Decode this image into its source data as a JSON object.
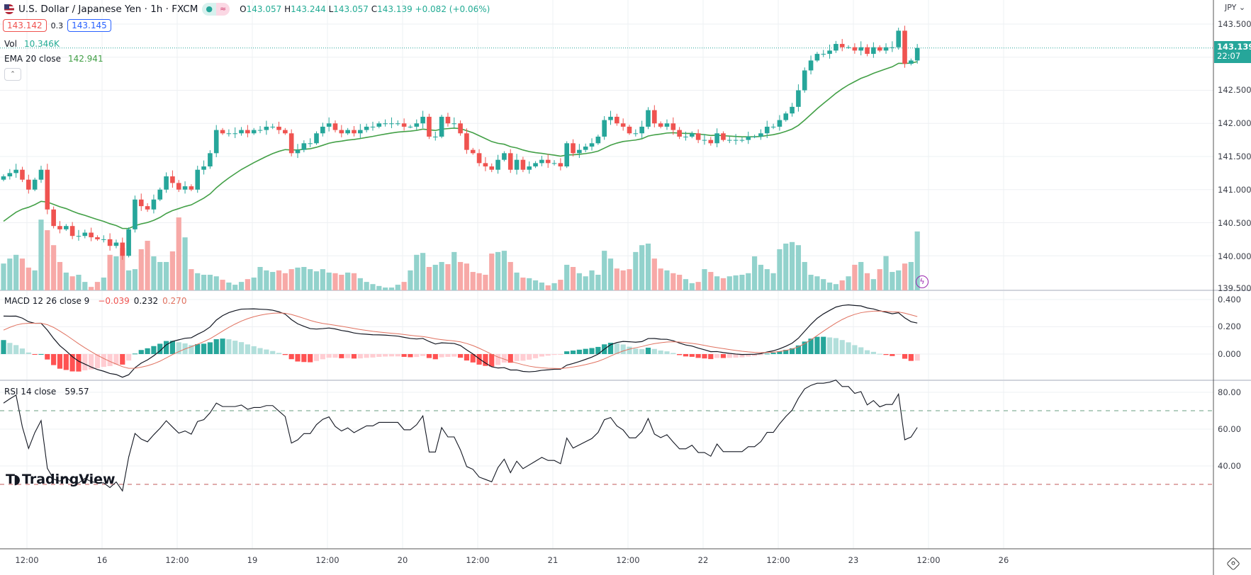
{
  "header": {
    "title": "U.S. Dollar / Japanese Yen · 1h · FXCM",
    "open_label": "O",
    "open": "143.057",
    "high_label": "H",
    "high": "143.244",
    "low_label": "L",
    "low": "143.057",
    "close_label": "C",
    "close": "143.139",
    "change": "+0.082 (+0.06%)",
    "status_dot": "●",
    "status_wave": "≈"
  },
  "quote": {
    "bid": "143.142",
    "spread": "0.3",
    "ask": "143.145"
  },
  "vol_legend": {
    "label": "Vol",
    "value": "10.346K"
  },
  "ema_legend": {
    "label": "EMA 20 close",
    "value": "142.941"
  },
  "macd_legend": {
    "label": "MACD 12 26 close 9",
    "hist": "−0.039",
    "macd": "0.232",
    "signal": "0.270"
  },
  "rsi_legend": {
    "label": "RSI 14 close",
    "value": "59.57"
  },
  "price_axis": {
    "currency": "JPY",
    "ticks": [
      "143.500",
      "142.500",
      "142.000",
      "141.500",
      "141.000",
      "140.500",
      "140.000",
      "139.500"
    ],
    "last_price": "143.139",
    "countdown": "22:07"
  },
  "macd_axis": {
    "ticks": [
      "0.400",
      "0.200",
      "0.000"
    ]
  },
  "rsi_axis": {
    "ticks": [
      "80.00",
      "60.00",
      "40.00"
    ]
  },
  "time_axis": {
    "ticks": [
      "12:00",
      "16",
      "12:00",
      "19",
      "12:00",
      "20",
      "12:00",
      "21",
      "12:00",
      "22",
      "12:00",
      "23",
      "12:00",
      "26"
    ]
  },
  "logo": "TradingView",
  "colors": {
    "up": "#26a69a",
    "down": "#ef5350",
    "ema": "#43a047",
    "vol_up": "#92d2cc",
    "vol_down": "#f7a9a7",
    "macd": "#131722",
    "signal": "#e0715f"
  },
  "chart_data": {
    "type": "candlestick",
    "title": "U.S. Dollar / Japanese Yen · 1h · FXCM",
    "ylim": [
      139.5,
      143.6
    ],
    "ema_start": 140.45,
    "fast_start": 140.96,
    "slow_start": 140.68,
    "signal_start": 0.15,
    "rsi_gain_start": 0.03,
    "rsi_loss_start": 0.011,
    "close": [
      141.2,
      141.25,
      141.3,
      141.15,
      141.0,
      141.15,
      141.3,
      140.7,
      140.45,
      140.4,
      140.45,
      140.3,
      140.3,
      140.35,
      140.28,
      140.25,
      140.25,
      140.15,
      140.2,
      140.0,
      140.4,
      140.85,
      140.75,
      140.7,
      140.85,
      141.0,
      141.2,
      141.1,
      141.0,
      141.05,
      141.0,
      141.3,
      141.35,
      141.55,
      141.9,
      141.85,
      141.85,
      141.85,
      141.9,
      141.85,
      141.9,
      141.9,
      141.95,
      141.95,
      141.9,
      141.85,
      141.55,
      141.6,
      141.7,
      141.7,
      141.85,
      141.95,
      142.0,
      141.9,
      141.85,
      141.9,
      141.85,
      141.9,
      141.95,
      141.95,
      142.0,
      142.0,
      142.0,
      142.0,
      141.95,
      141.95,
      142.0,
      142.1,
      141.8,
      141.8,
      142.1,
      142.0,
      142.0,
      141.85,
      141.6,
      141.55,
      141.4,
      141.35,
      141.3,
      141.45,
      141.55,
      141.3,
      141.45,
      141.3,
      141.35,
      141.4,
      141.45,
      141.4,
      141.4,
      141.35,
      141.7,
      141.55,
      141.6,
      141.65,
      141.7,
      141.8,
      142.05,
      142.1,
      142.0,
      141.95,
      141.85,
      141.85,
      141.95,
      142.2,
      142.0,
      141.95,
      142.0,
      141.9,
      141.8,
      141.8,
      141.85,
      141.75,
      141.75,
      141.7,
      141.85,
      141.75,
      141.75,
      141.75,
      141.75,
      141.8,
      141.8,
      141.85,
      141.95,
      141.95,
      142.05,
      142.15,
      142.25,
      142.5,
      142.8,
      142.95,
      143.05,
      143.05,
      143.1,
      143.2,
      143.15,
      143.15,
      143.1,
      143.15,
      143.05,
      143.15,
      143.1,
      143.15,
      143.15,
      143.4,
      142.9,
      142.95,
      143.139
    ],
    "volume_k": [
      8.6,
      10.2,
      11.4,
      10.2,
      7.3,
      6.4,
      22.7,
      19.3,
      14.5,
      9.1,
      5.7,
      4.5,
      5.0,
      2.7,
      1.1,
      2.7,
      4.1,
      11.4,
      10.9,
      13.6,
      6.4,
      6.8,
      13.2,
      15.9,
      10.9,
      9.1,
      9.1,
      12.5,
      23.4,
      17.0,
      6.8,
      5.5,
      5.0,
      5.0,
      4.5,
      3.4,
      2.5,
      1.8,
      2.7,
      3.6,
      4.1,
      7.5,
      6.4,
      5.9,
      6.4,
      5.5,
      6.8,
      7.3,
      7.5,
      6.8,
      6.1,
      6.8,
      5.7,
      5.5,
      5.0,
      5.7,
      5.5,
      3.9,
      2.7,
      2.0,
      1.4,
      0.9,
      0.9,
      1.8,
      2.7,
      6.4,
      11.4,
      12.0,
      7.5,
      8.2,
      9.1,
      8.4,
      12.3,
      9.1,
      8.6,
      5.9,
      5.5,
      5.0,
      11.8,
      12.3,
      12.7,
      9.1,
      5.7,
      4.1,
      3.9,
      3.2,
      2.5,
      1.6,
      2.3,
      3.4,
      8.2,
      7.5,
      5.5,
      4.5,
      6.4,
      5.0,
      12.7,
      10.2,
      7.0,
      6.4,
      6.8,
      12.3,
      14.5,
      15.0,
      10.2,
      7.0,
      6.4,
      5.5,
      5.0,
      3.6,
      2.3,
      2.7,
      6.8,
      5.9,
      4.5,
      3.9,
      4.5,
      4.8,
      5.0,
      5.5,
      10.9,
      8.2,
      6.8,
      5.5,
      13.2,
      15.0,
      15.5,
      14.5,
      9.1,
      5.0,
      4.5,
      3.6,
      2.5,
      2.0,
      3.2,
      4.5,
      8.2,
      9.1,
      5.5,
      3.6,
      6.8,
      11.0,
      5.9,
      6.4,
      8.6,
      9.1,
      18.9,
      8.2,
      10.346
    ],
    "macd_ylim": [
      -0.17,
      0.47
    ],
    "rsi_ylim": [
      24,
      86
    ],
    "rsi_levels": [
      70,
      30
    ]
  }
}
